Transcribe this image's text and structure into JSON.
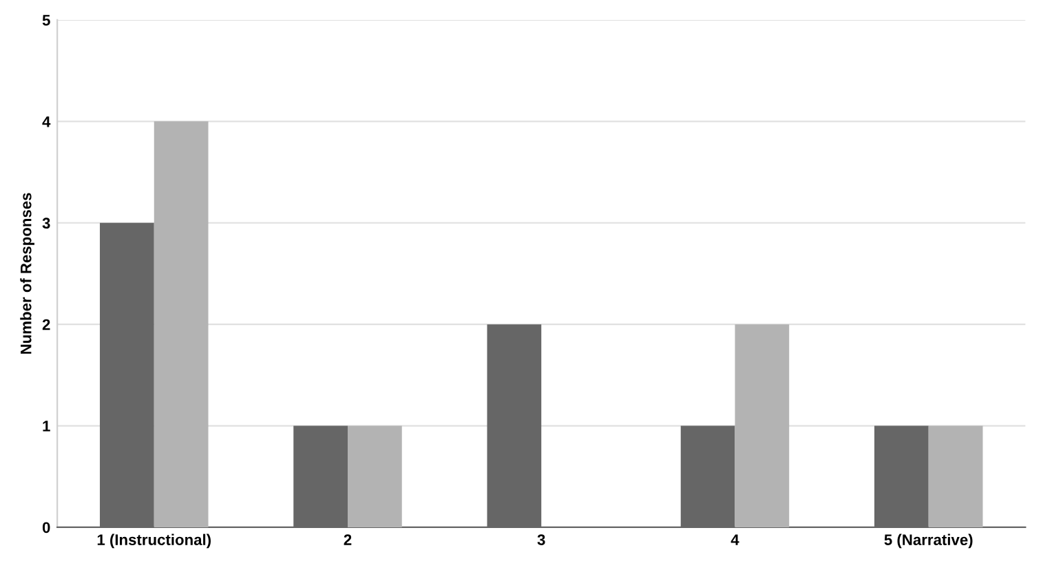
{
  "chart_data": {
    "type": "bar",
    "ylabel": "Number of Responses",
    "categories": [
      "1 (Instructional)",
      "2",
      "3",
      "4",
      "5 (Narrative)"
    ],
    "series": [
      {
        "color": "#666666",
        "values": [
          3,
          1,
          2,
          1,
          1
        ]
      },
      {
        "color": "#b3b3b3",
        "values": [
          4,
          1,
          0,
          2,
          1
        ]
      }
    ],
    "ylim": [
      0,
      5
    ],
    "yticks": [
      0,
      1,
      2,
      3,
      4,
      5
    ],
    "grid": "y",
    "legend": false
  }
}
